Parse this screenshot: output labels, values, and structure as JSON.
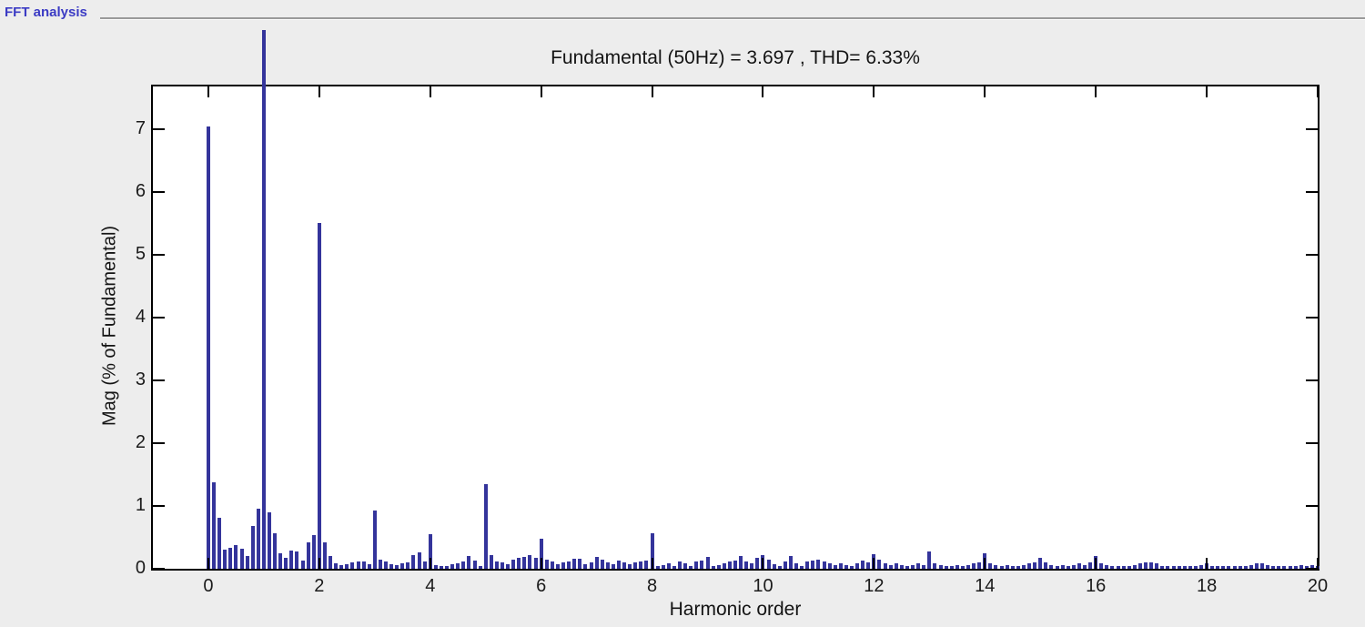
{
  "panel": {
    "label": "FFT analysis"
  },
  "chart_data": {
    "type": "bar",
    "title": "Fundamental (50Hz) = 3.697 , THD= 6.33%",
    "xlabel": "Harmonic order",
    "ylabel": "Mag (% of Fundamental)",
    "fundamental_hz": 50,
    "fundamental_value": 3.697,
    "thd_percent": 6.33,
    "xlim": [
      -1,
      20
    ],
    "ylim": [
      0,
      7.68
    ],
    "x_ticks": [
      0,
      2,
      4,
      6,
      8,
      10,
      12,
      14,
      16,
      18,
      20
    ],
    "y_ticks": [
      0,
      1,
      2,
      3,
      4,
      5,
      6,
      7
    ],
    "grid": false,
    "legend": null,
    "bar_color": "#34349b",
    "bar_step": 0.1,
    "x_start": 0,
    "clipped_bar_display_top": 8.58,
    "note": "Bar at harmonic order 1.0 is the fundamental (100%), drawn clipped above the axes box top",
    "values": [
      7.04,
      1.37,
      0.81,
      0.3,
      0.33,
      0.38,
      0.32,
      0.2,
      0.68,
      0.95,
      100,
      0.9,
      0.56,
      0.24,
      0.18,
      0.29,
      0.27,
      0.13,
      0.42,
      0.54,
      5.5,
      0.42,
      0.21,
      0.09,
      0.06,
      0.07,
      0.1,
      0.11,
      0.12,
      0.07,
      0.93,
      0.15,
      0.11,
      0.07,
      0.06,
      0.09,
      0.1,
      0.22,
      0.26,
      0.12,
      0.55,
      0.06,
      0.04,
      0.05,
      0.07,
      0.09,
      0.12,
      0.2,
      0.13,
      0.05,
      1.35,
      0.22,
      0.12,
      0.1,
      0.07,
      0.14,
      0.17,
      0.19,
      0.22,
      0.17,
      0.48,
      0.14,
      0.12,
      0.07,
      0.1,
      0.12,
      0.16,
      0.16,
      0.07,
      0.1,
      0.19,
      0.14,
      0.1,
      0.07,
      0.13,
      0.1,
      0.07,
      0.1,
      0.11,
      0.13,
      0.57,
      0.05,
      0.06,
      0.08,
      0.05,
      0.11,
      0.08,
      0.05,
      0.11,
      0.13,
      0.19,
      0.05,
      0.06,
      0.08,
      0.11,
      0.13,
      0.21,
      0.11,
      0.08,
      0.17,
      0.22,
      0.14,
      0.07,
      0.05,
      0.11,
      0.21,
      0.08,
      0.05,
      0.11,
      0.13,
      0.14,
      0.11,
      0.08,
      0.06,
      0.08,
      0.06,
      0.05,
      0.08,
      0.13,
      0.1,
      0.23,
      0.14,
      0.08,
      0.06,
      0.08,
      0.06,
      0.05,
      0.06,
      0.08,
      0.06,
      0.28,
      0.08,
      0.06,
      0.05,
      0.04,
      0.06,
      0.05,
      0.06,
      0.08,
      0.1,
      0.24,
      0.08,
      0.06,
      0.05,
      0.06,
      0.05,
      0.04,
      0.06,
      0.08,
      0.1,
      0.18,
      0.1,
      0.06,
      0.05,
      0.06,
      0.05,
      0.06,
      0.08,
      0.06,
      0.1,
      0.21,
      0.08,
      0.06,
      0.05,
      0.04,
      0.05,
      0.04,
      0.06,
      0.08,
      0.1,
      0.1,
      0.08,
      0.05,
      0.04,
      0.05,
      0.04,
      0.05,
      0.04,
      0.05,
      0.06,
      0.08,
      0.05,
      0.04,
      0.05,
      0.04,
      0.05,
      0.04,
      0.05,
      0.06,
      0.08,
      0.08,
      0.06,
      0.05,
      0.04,
      0.05,
      0.04,
      0.05,
      0.06,
      0.05,
      0.06,
      0.05
    ]
  },
  "colors": {
    "background": "#ededed",
    "plot_background": "#ffffff",
    "frame": "#000000",
    "bar": "#34349b",
    "panel_label": "#3b3bc4",
    "text": "#141414",
    "groove": "#9a9a9a"
  }
}
